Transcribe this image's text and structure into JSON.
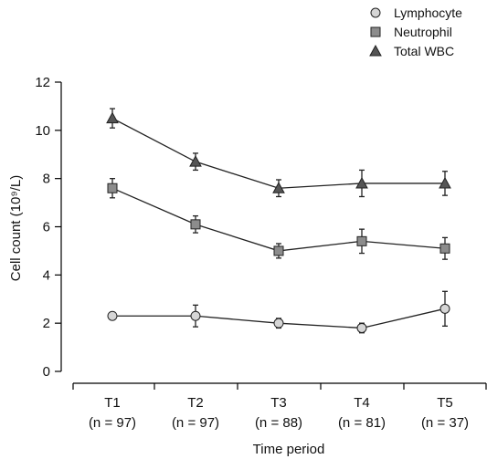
{
  "chart_data": {
    "type": "line",
    "xlabel": "Time period",
    "ylabel": "Cell count (10⁹/L)",
    "ylim": [
      0,
      12
    ],
    "yticks": [
      0,
      2,
      4,
      6,
      8,
      10,
      12
    ],
    "categories": [
      "T1",
      "T2",
      "T3",
      "T4",
      "T5"
    ],
    "category_sublabels": [
      "(n = 97)",
      "(n = 97)",
      "(n = 88)",
      "(n = 81)",
      "(n = 37)"
    ],
    "legend_position": "top-right",
    "grid": false,
    "series": [
      {
        "name": "Lymphocyte",
        "marker": "circle",
        "fill": "#d6d6d6",
        "values": [
          2.3,
          2.3,
          2.0,
          1.8,
          2.6
        ],
        "errors": [
          0.15,
          0.45,
          0.2,
          0.2,
          0.72
        ]
      },
      {
        "name": "Neutrophil",
        "marker": "square",
        "fill": "#8c8c8c",
        "values": [
          7.6,
          6.1,
          5.0,
          5.4,
          5.1
        ],
        "errors": [
          0.4,
          0.35,
          0.3,
          0.5,
          0.45
        ]
      },
      {
        "name": "Total WBC",
        "marker": "triangle",
        "fill": "#555555",
        "values": [
          10.5,
          8.7,
          7.6,
          7.8,
          7.8
        ],
        "errors": [
          0.4,
          0.35,
          0.35,
          0.55,
          0.5
        ]
      }
    ]
  }
}
